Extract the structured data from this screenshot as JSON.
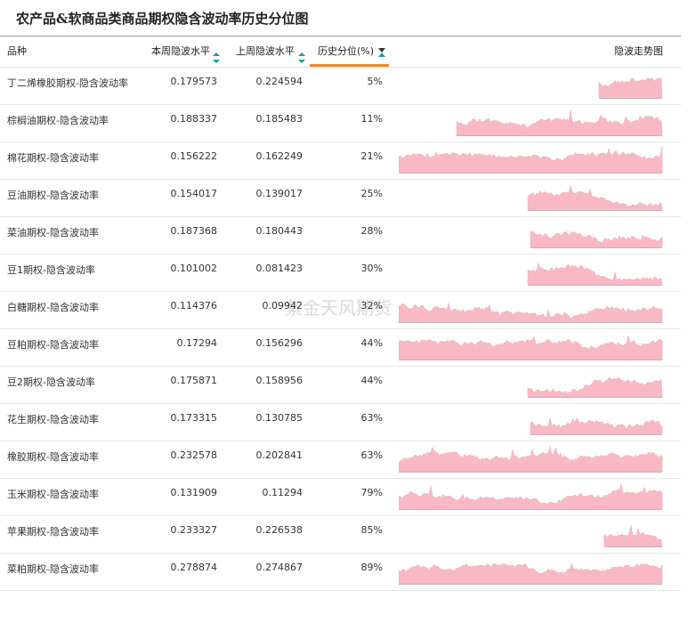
{
  "title": "农产品&软商品类商品期权隐含波动率历史分位图",
  "watermark": "紫金天风期货",
  "table": {
    "headers": [
      "品种",
      "本周隐波水平",
      "上周隐波水平",
      "历史分位(%)",
      "隐波走势图"
    ],
    "rows": [
      [
        "丁二烯橡胶期权-隐含波动率",
        0.179573,
        0.224594,
        "5%"
      ],
      [
        "棕榈油期权-隐含波动率",
        0.188337,
        0.185483,
        "11%"
      ],
      [
        "棉花期权-隐含波动率",
        0.156222,
        0.162249,
        "21%"
      ],
      [
        "豆油期权-隐含波动率",
        0.154017,
        0.139017,
        "25%"
      ],
      [
        "菜油期权-隐含波动率",
        0.187368,
        0.180443,
        "28%"
      ],
      [
        "豆1期权-隐含波动率",
        0.101002,
        0.081423,
        "30%"
      ],
      [
        "白糖期权-隐含波动率",
        0.114376,
        0.09942,
        "32%"
      ],
      [
        "豆粕期权-隐含波动率",
        0.17294,
        0.156296,
        "44%"
      ],
      [
        "豆2期权-隐含波动率",
        0.175871,
        0.158956,
        "44%"
      ],
      [
        "花生期权-隐含波动率",
        0.173315,
        0.130785,
        "63%"
      ],
      [
        "橡胶期权-隐含波动率",
        0.232578,
        0.202841,
        "63%"
      ],
      [
        "玉米期权-隐含波动率",
        0.131909,
        0.11294,
        "79%"
      ],
      [
        "苹果期权-隐含波动率",
        0.233327,
        0.226538,
        "85%"
      ],
      [
        "菜粕期权-隐含波动率",
        0.278874,
        0.274867,
        "89%"
      ]
    ]
  }
}
